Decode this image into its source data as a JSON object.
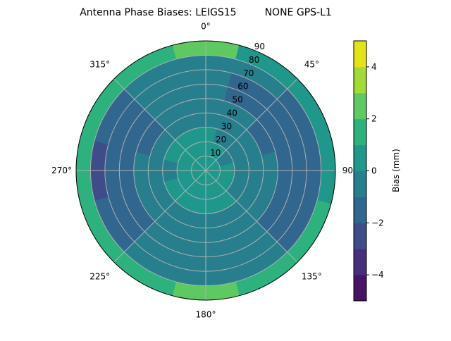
{
  "chart_data": {
    "type": "heatmap",
    "subtype": "polar-filled-contour",
    "title": "Antenna Phase Biases: LEIGS15         NONE GPS-L1",
    "theta_zero": "north",
    "theta_direction": "clockwise",
    "theta_tick_labels": [
      "0°",
      "45°",
      "90°",
      "135°",
      "180°",
      "225°",
      "270°",
      "315°"
    ],
    "radial_tick_labels": [
      "10",
      "20",
      "30",
      "40",
      "50",
      "60",
      "70",
      "80",
      "90"
    ],
    "radial_range": [
      0,
      90
    ],
    "grid": true,
    "colormap": "viridis",
    "colorbar": {
      "label": "Bias (mm)",
      "levels": [
        -5,
        -4,
        -3,
        -2,
        -1,
        0,
        1,
        2,
        3,
        4,
        5
      ],
      "tick_labels": [
        "−4",
        "−2",
        "0",
        "2",
        "4"
      ],
      "tick_values": [
        -4,
        -2,
        0,
        2,
        4
      ],
      "colors": [
        "#471365",
        "#472e7c",
        "#3e4c8a",
        "#31668e",
        "#277f8e",
        "#1f988b",
        "#2db27d",
        "#5ec962",
        "#a2da37",
        "#e2e418"
      ]
    },
    "azimuths_deg": [
      0,
      30,
      60,
      90,
      120,
      150,
      180,
      210,
      240,
      270,
      300,
      330
    ],
    "radius_bins": [
      [
        0,
        10
      ],
      [
        10,
        20
      ],
      [
        20,
        30
      ],
      [
        30,
        40
      ],
      [
        40,
        50
      ],
      [
        50,
        60
      ],
      [
        60,
        70
      ],
      [
        70,
        80
      ],
      [
        80,
        90
      ]
    ],
    "values_mm": [
      [
        0.5,
        0.5,
        0.5,
        0.5,
        0.5,
        0.5,
        0.5,
        0.5,
        0.5,
        0.5,
        0.5,
        0.5
      ],
      [
        0.5,
        0.5,
        -0.5,
        0.5,
        0.5,
        0.5,
        0.5,
        0.5,
        0.5,
        0.5,
        0.5,
        0.5
      ],
      [
        0.5,
        -0.5,
        -0.5,
        -0.5,
        -0.5,
        0.5,
        0.5,
        0.5,
        0.5,
        -0.5,
        0.5,
        0.5
      ],
      [
        -0.5,
        -0.5,
        -0.5,
        -0.5,
        -0.5,
        -0.5,
        -0.5,
        -0.5,
        -0.5,
        -0.5,
        -0.5,
        -0.5
      ],
      [
        -0.5,
        -0.5,
        -1.5,
        -0.5,
        -0.5,
        -0.5,
        -0.5,
        -0.5,
        -0.5,
        -0.5,
        -1.5,
        -0.5
      ],
      [
        -0.5,
        -1.5,
        -1.5,
        -1.5,
        -1.5,
        -0.5,
        -0.5,
        -0.5,
        -1.5,
        -1.5,
        -1.5,
        -0.5
      ],
      [
        -0.5,
        -1.5,
        -1.5,
        -1.5,
        -1.5,
        -0.5,
        -0.5,
        -0.5,
        -1.5,
        -1.5,
        -1.5,
        -0.5
      ],
      [
        -0.5,
        -0.5,
        -1.5,
        -1.5,
        -1.5,
        -0.5,
        -0.5,
        -0.5,
        -1.5,
        -2.5,
        -1.5,
        -0.5
      ],
      [
        2.5,
        0.5,
        0.5,
        0.5,
        1.5,
        1.5,
        2.5,
        1.5,
        1.5,
        1.5,
        1.5,
        1.5
      ]
    ]
  }
}
